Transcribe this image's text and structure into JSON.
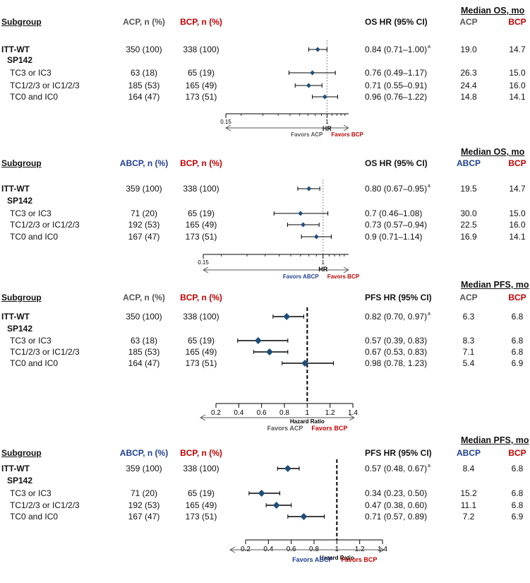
{
  "colors": {
    "acp": "#555555",
    "bcp": "#c00000",
    "abcp": "#1f3f8f",
    "marker": "#1f4e79"
  },
  "chart_data": [
    {
      "type": "forest",
      "title": "",
      "headers": {
        "subgroup": "Subgroup",
        "arm1": "ACP, n (%)",
        "arm2": "BCP, n (%)",
        "effect": "OS HR (95% CI)",
        "median_title": "Median OS, mo",
        "median_arm1": "ACP",
        "median_arm2": "BCP"
      },
      "rows": [
        {
          "label": "ITT-WT",
          "bold": true,
          "n1": "350 (100)",
          "n2": "338 (100)",
          "hr_text": "0.84 (0.71–1.00)",
          "sup": "a",
          "m1": "19.0",
          "m2": "14.7",
          "hr": 0.84,
          "lo": 0.71,
          "hi": 1.0
        },
        {
          "label": "SP142",
          "bold": true,
          "section": true
        },
        {
          "label": "TC3 or IC3",
          "n1": "63 (18)",
          "n2": "65 (19)",
          "hr_text": "0.76 (0.49–1.17)",
          "m1": "26.3",
          "m2": "15.0",
          "hr": 0.76,
          "lo": 0.49,
          "hi": 1.17
        },
        {
          "label": "TC1/2/3 or IC1/2/3",
          "n1": "185 (53)",
          "n2": "165 (49)",
          "hr_text": "0.71 (0.55–0.91)",
          "m1": "24.4",
          "m2": "16.0",
          "hr": 0.71,
          "lo": 0.55,
          "hi": 0.91
        },
        {
          "label": "TC0 and IC0",
          "n1": "164 (47)",
          "n2": "173 (51)",
          "hr_text": "0.96 (0.76–1.22)",
          "m1": "14.8",
          "m2": "14.1",
          "hr": 0.96,
          "lo": 0.76,
          "hi": 1.22
        }
      ],
      "x_scale": "log",
      "xlim": [
        0.15,
        1.5
      ],
      "ticks": [
        {
          "v": 0.15,
          "label": "0.15"
        },
        {
          "v": 1,
          "label": "1"
        }
      ],
      "xlabel": "HR",
      "favors_left": "Favors ACP",
      "favors_right": "Favors BCP"
    },
    {
      "type": "forest",
      "title": "",
      "headers": {
        "subgroup": "Subgroup",
        "arm1": "ABCP, n (%)",
        "arm2": "BCP, n (%)",
        "effect": "OS HR (95% CI)",
        "median_title": "Median OS, mo",
        "median_arm1": "ABCP",
        "median_arm2": "BCP"
      },
      "rows": [
        {
          "label": "ITT-WT",
          "bold": true,
          "n1": "359 (100)",
          "n2": "338 (100)",
          "hr_text": "0.80 (0.67–0.95)",
          "sup": "a",
          "m1": "19.5",
          "m2": "14.7",
          "hr": 0.8,
          "lo": 0.67,
          "hi": 0.95
        },
        {
          "label": "SP142",
          "bold": true,
          "section": true
        },
        {
          "label": "TC3 or IC3",
          "n1": "71 (20)",
          "n2": "65 (19)",
          "hr_text": "0.7 (0.46–1.08)",
          "m1": "30.0",
          "m2": "15.0",
          "hr": 0.7,
          "lo": 0.46,
          "hi": 1.08
        },
        {
          "label": "TC1/2/3 or IC1/2/3",
          "n1": "192 (53)",
          "n2": "165 (49)",
          "hr_text": "0.73 (0.57–0.94)",
          "m1": "22.5",
          "m2": "16.0",
          "hr": 0.73,
          "lo": 0.57,
          "hi": 0.94
        },
        {
          "label": "TC0 and IC0",
          "n1": "167 (47)",
          "n2": "173 (51)",
          "hr_text": "0.9 (0.71–1.14)",
          "m1": "16.9",
          "m2": "14.1",
          "hr": 0.9,
          "lo": 0.71,
          "hi": 1.14
        }
      ],
      "x_scale": "log",
      "xlim": [
        0.15,
        1.5
      ],
      "ticks": [
        {
          "v": 0.15,
          "label": "0.15"
        },
        {
          "v": 1,
          "label": "1"
        }
      ],
      "xlabel": "HR",
      "favors_left": "Favors ABCP",
      "favors_right": "Favors BCP"
    },
    {
      "type": "forest",
      "title": "",
      "headers": {
        "subgroup": "Subgroup",
        "arm1": "ACP, n (%)",
        "arm2": "BCP, n (%)",
        "effect": "PFS HR (95% CI)",
        "median_title": "Median PFS, mo",
        "median_arm1": "ACP",
        "median_arm2": "BCP"
      },
      "rows": [
        {
          "label": "ITT-WT",
          "bold": true,
          "n1": "350 (100)",
          "n2": "338 (100)",
          "hr_text": "0.82 (0.70, 0.97)",
          "sup": "a",
          "m1": "6.3",
          "m2": "6.8",
          "hr": 0.82,
          "lo": 0.7,
          "hi": 0.97
        },
        {
          "label": "SP142",
          "bold": true,
          "section": true
        },
        {
          "label": "TC3 or IC3",
          "n1": "63 (18)",
          "n2": "65 (19)",
          "hr_text": "0.57 (0.39, 0.83)",
          "m1": "8.3",
          "m2": "6.8",
          "hr": 0.57,
          "lo": 0.39,
          "hi": 0.83
        },
        {
          "label": "TC1/2/3 or IC1/2/3",
          "n1": "185 (53)",
          "n2": "165 (49)",
          "hr_text": "0.67 (0.53, 0.83)",
          "m1": "7.1",
          "m2": "6.8",
          "hr": 0.67,
          "lo": 0.53,
          "hi": 0.83
        },
        {
          "label": "TC0 and IC0",
          "n1": "164 (47)",
          "n2": "173 (51)",
          "hr_text": "0.98 (0.78, 1.23)",
          "m1": "5.4",
          "m2": "6.9",
          "hr": 0.98,
          "lo": 0.78,
          "hi": 1.23
        }
      ],
      "x_scale": "linear",
      "xlim": [
        0.2,
        1.4
      ],
      "ticks": [
        {
          "v": 0.2,
          "label": "0.2"
        },
        {
          "v": 0.4,
          "label": "0.4"
        },
        {
          "v": 0.6,
          "label": "0.6"
        },
        {
          "v": 0.8,
          "label": "0.8"
        },
        {
          "v": 1.0,
          "label": "1"
        },
        {
          "v": 1.2,
          "label": "1.2"
        },
        {
          "v": 1.4,
          "label": "1.4"
        }
      ],
      "xlabel": "Hazard Ratio",
      "favors_left": "Favors ACP",
      "favors_right": "Favors BCP"
    },
    {
      "type": "forest",
      "title": "",
      "headers": {
        "subgroup": "Subgroup",
        "arm1": "ABCP, n (%)",
        "arm2": "BCP, n (%)",
        "effect": "PFS HR (95% CI)",
        "median_title": "Median PFS, mo",
        "median_arm1": "ABCP",
        "median_arm2": "BCP"
      },
      "rows": [
        {
          "label": "ITT-WT",
          "bold": true,
          "n1": "359 (100)",
          "n2": "338 (100)",
          "hr_text": "0.57 (0.48, 0.67)",
          "sup": "a",
          "m1": "8.4",
          "m2": "6.8",
          "hr": 0.57,
          "lo": 0.48,
          "hi": 0.67
        },
        {
          "label": "SP142",
          "bold": true,
          "section": true
        },
        {
          "label": "TC3 or IC3",
          "n1": "71 (20)",
          "n2": "65 (19)",
          "hr_text": "0.34 (0.23, 0.50)",
          "m1": "15.2",
          "m2": "6.8",
          "hr": 0.34,
          "lo": 0.23,
          "hi": 0.5
        },
        {
          "label": "TC1/2/3 or IC1/2/3",
          "n1": "192 (53)",
          "n2": "165 (49)",
          "hr_text": "0.47 (0.38, 0.60)",
          "m1": "11.1",
          "m2": "6.8",
          "hr": 0.47,
          "lo": 0.38,
          "hi": 0.6
        },
        {
          "label": "TC0 and IC0",
          "n1": "167 (47)",
          "n2": "173 (51)",
          "hr_text": "0.71 (0.57, 0.89)",
          "m1": "7.2",
          "m2": "6.9",
          "hr": 0.71,
          "lo": 0.57,
          "hi": 0.89
        }
      ],
      "x_scale": "linear",
      "xlim": [
        0.2,
        1.4
      ],
      "ticks": [
        {
          "v": 0.2,
          "label": "0.2"
        },
        {
          "v": 0.4,
          "label": "0.4"
        },
        {
          "v": 0.6,
          "label": "0.6"
        },
        {
          "v": 0.8,
          "label": "0.8"
        },
        {
          "v": 1.0,
          "label": "1"
        },
        {
          "v": 1.2,
          "label": "1.2"
        },
        {
          "v": 1.4,
          "label": "1.4"
        }
      ],
      "xlabel": "Hazard Ratio",
      "favors_left": "Favors ABCP",
      "favors_right": "Favors BCP"
    }
  ]
}
